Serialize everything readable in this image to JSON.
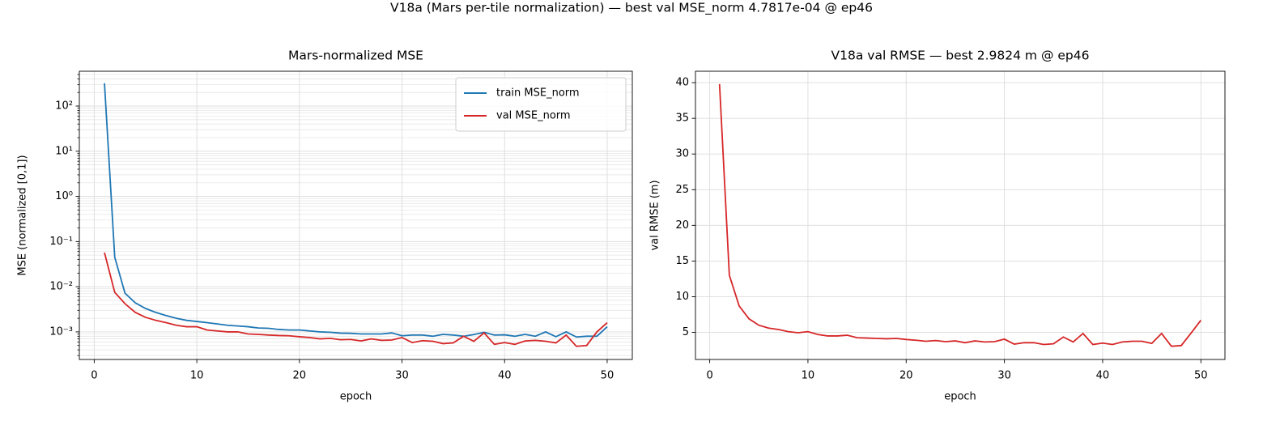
{
  "title": "V18a (Mars per-tile normalization) — best val MSE_norm 4.7817e-04 @ ep46",
  "chart_data": [
    {
      "type": "line",
      "title": "Mars-normalized MSE",
      "xlabel": "epoch",
      "ylabel": "MSE (normalized [0,1])",
      "ylog": true,
      "grid": true,
      "legend": "upper right",
      "x": [
        1,
        2,
        3,
        4,
        5,
        6,
        7,
        8,
        9,
        10,
        11,
        12,
        13,
        14,
        15,
        16,
        17,
        18,
        19,
        20,
        21,
        22,
        23,
        24,
        25,
        26,
        27,
        28,
        29,
        30,
        31,
        32,
        33,
        34,
        35,
        36,
        37,
        38,
        39,
        40,
        41,
        42,
        43,
        44,
        45,
        46,
        47,
        48,
        49,
        50
      ],
      "series": [
        {
          "name": "train MSE_norm",
          "color": "#1f77b4",
          "values": [
            320,
            0.045,
            0.0072,
            0.0044,
            0.0033,
            0.0027,
            0.0023,
            0.002,
            0.0018,
            0.0017,
            0.0016,
            0.0015,
            0.0014,
            0.00135,
            0.0013,
            0.00122,
            0.0012,
            0.00113,
            0.0011,
            0.0011,
            0.00105,
            0.001,
            0.00098,
            0.00094,
            0.00093,
            0.0009,
            0.0009,
            0.0009,
            0.00095,
            0.00082,
            0.00085,
            0.00085,
            0.0008,
            0.00088,
            0.00085,
            0.0008,
            0.00087,
            0.00098,
            0.00085,
            0.00086,
            0.0008,
            0.00088,
            0.0008,
            0.001,
            0.00078,
            0.001,
            0.00077,
            0.0008,
            0.0008,
            0.0013
          ]
        },
        {
          "name": "val MSE_norm",
          "color": "#d62728",
          "values": [
            0.057,
            0.0075,
            0.0042,
            0.0027,
            0.0021,
            0.0018,
            0.0016,
            0.0014,
            0.0013,
            0.0013,
            0.0011,
            0.00105,
            0.001,
            0.001,
            0.0009,
            0.00088,
            0.00085,
            0.00083,
            0.00082,
            0.00078,
            0.00075,
            0.0007,
            0.00072,
            0.00067,
            0.00068,
            0.00063,
            0.0007,
            0.00065,
            0.00066,
            0.00075,
            0.00058,
            0.00064,
            0.00062,
            0.00055,
            0.00057,
            0.0008,
            0.00062,
            0.00095,
            0.00053,
            0.00058,
            0.00053,
            0.00063,
            0.00065,
            0.00062,
            0.00057,
            0.00085,
            0.00048,
            0.0005,
            0.001,
            0.0016
          ]
        }
      ],
      "xlim": [
        -1.45,
        52.45
      ],
      "xticks": [
        0,
        10,
        20,
        30,
        40,
        50
      ],
      "ylim": [
        0.000245,
        590
      ],
      "yticks": [
        {
          "value": 0.001,
          "label": "10⁻³"
        },
        {
          "value": 0.01,
          "label": "10⁻²"
        },
        {
          "value": 0.1,
          "label": "10⁻¹"
        },
        {
          "value": 1,
          "label": "10⁰"
        },
        {
          "value": 10,
          "label": "10¹"
        },
        {
          "value": 100,
          "label": "10²"
        }
      ],
      "yminorticks": [
        0.0003,
        0.0004,
        0.0005,
        0.0006,
        0.0007,
        0.0008,
        0.0009,
        0.002,
        0.003,
        0.004,
        0.005,
        0.006,
        0.007,
        0.008,
        0.009,
        0.02,
        0.03,
        0.04,
        0.05,
        0.06,
        0.07,
        0.08,
        0.09,
        0.2,
        0.3,
        0.4,
        0.5,
        0.6,
        0.7,
        0.8,
        0.9,
        2,
        3,
        4,
        5,
        6,
        7,
        8,
        9,
        20,
        30,
        40,
        50,
        60,
        70,
        80,
        90,
        200,
        300,
        400,
        500
      ]
    },
    {
      "type": "line",
      "title": "V18a val RMSE — best 2.9824 m @ ep46",
      "xlabel": "epoch",
      "ylabel": "val RMSE (m)",
      "ylog": false,
      "grid": true,
      "x": [
        1,
        2,
        3,
        4,
        5,
        6,
        7,
        8,
        9,
        10,
        11,
        12,
        13,
        14,
        15,
        16,
        17,
        18,
        19,
        20,
        21,
        22,
        23,
        24,
        25,
        26,
        27,
        28,
        29,
        30,
        31,
        32,
        33,
        34,
        35,
        36,
        37,
        38,
        39,
        40,
        41,
        42,
        43,
        44,
        45,
        46,
        47,
        48,
        49,
        50
      ],
      "series": [
        {
          "color": "#d62728",
          "values": [
            39.8,
            13,
            8.7,
            6.9,
            6.0,
            5.6,
            5.4,
            5.1,
            4.95,
            5.1,
            4.7,
            4.5,
            4.5,
            4.6,
            4.25,
            4.2,
            4.15,
            4.1,
            4.15,
            4.0,
            3.9,
            3.75,
            3.85,
            3.7,
            3.8,
            3.55,
            3.8,
            3.65,
            3.7,
            4.05,
            3.35,
            3.55,
            3.55,
            3.3,
            3.4,
            4.35,
            3.65,
            4.85,
            3.3,
            3.5,
            3.3,
            3.65,
            3.75,
            3.75,
            3.45,
            4.85,
            3.05,
            3.15,
            4.9,
            6.7
          ]
        }
      ],
      "xlim": [
        -1.45,
        52.45
      ],
      "xticks": [
        0,
        10,
        20,
        30,
        40,
        50
      ],
      "ylim": [
        1.2,
        41.6
      ],
      "yticks": [
        5,
        10,
        15,
        20,
        25,
        30,
        35,
        40
      ]
    }
  ]
}
